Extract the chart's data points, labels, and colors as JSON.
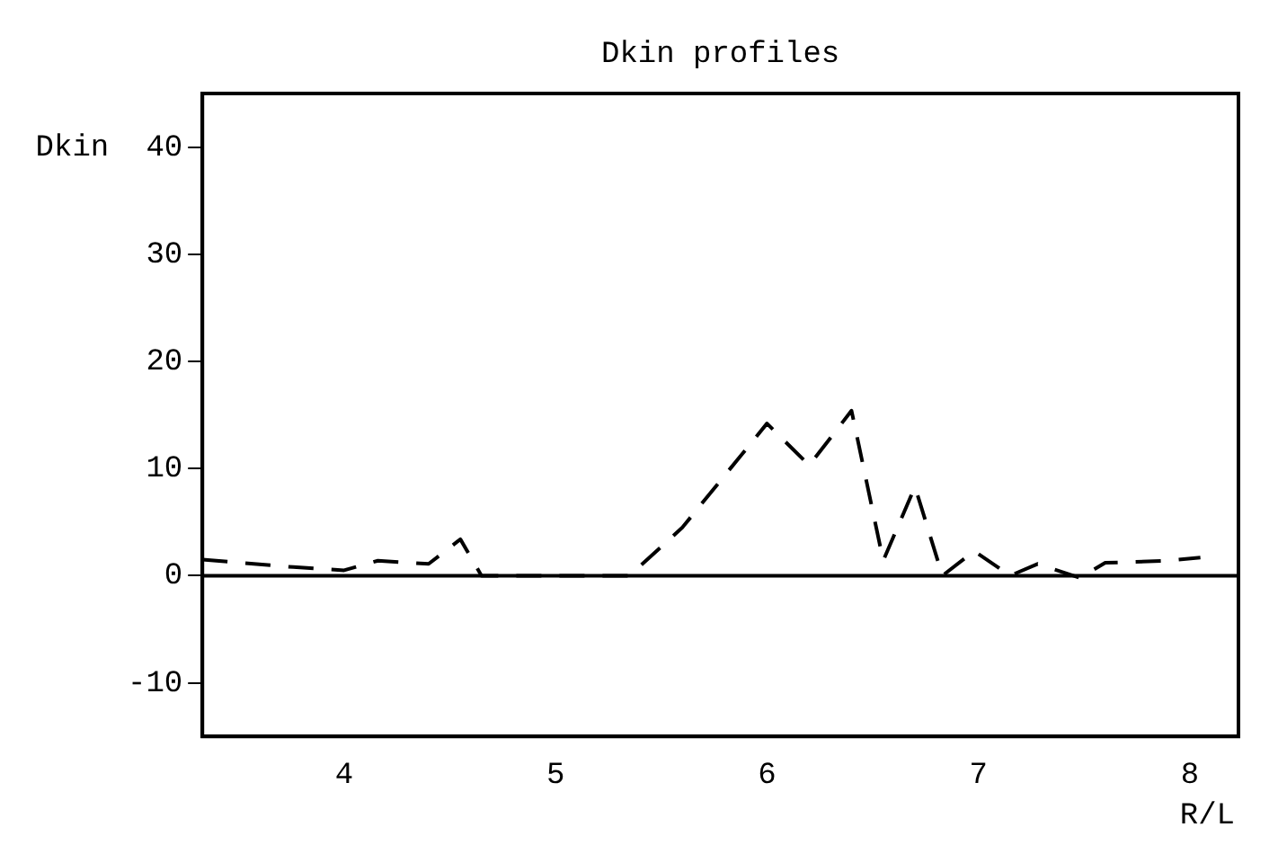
{
  "chart_data": {
    "type": "line",
    "title": "Dkin profiles",
    "xlabel": "R/L",
    "ylabel": "Dkin",
    "x": [
      3.33,
      3.76,
      4.0,
      4.16,
      4.4,
      4.55,
      4.65,
      5.35,
      5.6,
      6.0,
      6.2,
      6.4,
      6.55,
      6.7,
      6.83,
      6.98,
      7.15,
      7.28,
      7.48,
      7.6,
      7.9,
      8.05
    ],
    "series": [
      {
        "color": "#000000",
        "values": [
          1.5,
          0.8,
          0.5,
          1.4,
          1.1,
          3.4,
          0,
          0,
          4.5,
          14.2,
          10.3,
          15.4,
          1.4,
          8.3,
          0,
          2.3,
          0,
          1.1,
          -0.2,
          1.2,
          1.4,
          1.7
        ]
      }
    ],
    "xlim": [
      3.33,
      8.23
    ],
    "ylim": [
      -15,
      45
    ],
    "xticks": [
      4,
      5,
      6,
      7,
      8
    ],
    "yticks": [
      -10,
      0,
      10,
      20,
      30,
      40
    ],
    "ref_lines": [
      {
        "axis": "y",
        "value": 0,
        "color": "#000000",
        "line_style": "solid"
      }
    ],
    "grid": false,
    "legend": false,
    "marker": "none",
    "line_style": "dashed"
  }
}
